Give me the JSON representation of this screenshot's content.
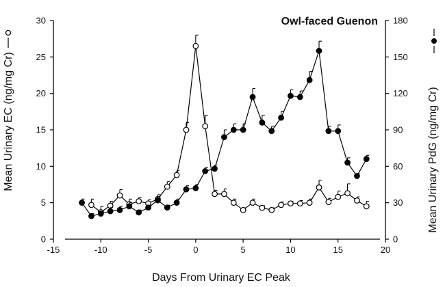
{
  "chart_data": {
    "type": "line",
    "title": "Owl-faced Guenon",
    "xlabel": "Days From Urinary EC Peak",
    "ylabel_left": "Mean Urinary EC (ng/mg Cr)",
    "ylabel_right": "Mean Urinary PdG (ng/mg Cr)",
    "xlim": [
      -15,
      20
    ],
    "ylim_left": [
      0,
      30
    ],
    "ylim_right": [
      0,
      180
    ],
    "x_ticks": [
      "-15",
      "-10",
      "-5",
      "0",
      "5",
      "10",
      "15",
      "20"
    ],
    "y_left_ticks": [
      "0",
      "5",
      "10",
      "15",
      "20",
      "25",
      "30"
    ],
    "y_right_ticks": [
      "0",
      "30",
      "60",
      "90",
      "120",
      "150",
      "180"
    ],
    "grid": false,
    "series": [
      {
        "name": "Mean Urinary EC (ng/mg Cr)",
        "axis": "left",
        "marker": "open-circle",
        "x": [
          -11,
          -10,
          -9,
          -8,
          -7,
          -6,
          -5,
          -4,
          -3,
          -2,
          -1,
          0,
          1,
          2,
          3,
          4,
          5,
          6,
          7,
          8,
          9,
          10,
          11,
          12,
          13,
          14,
          15,
          16,
          17,
          18
        ],
        "values": [
          4.7,
          3.7,
          4.6,
          6.0,
          4.8,
          5.2,
          4.9,
          5.5,
          7.2,
          8.8,
          15.0,
          26.5,
          15.5,
          6.2,
          6.2,
          5.0,
          4.0,
          5.0,
          4.3,
          4.0,
          4.7,
          4.9,
          4.9,
          5.0,
          7.1,
          5.1,
          5.8,
          6.3,
          5.3,
          4.5
        ],
        "errors": [
          0.8,
          0.8,
          0.6,
          0.8,
          0.7,
          0.5,
          0.5,
          0.6,
          0.7,
          0.6,
          1.0,
          1.5,
          1.5,
          0.5,
          0.7,
          0.5,
          0.3,
          0.5,
          0.3,
          0.3,
          0.4,
          0.3,
          0.4,
          0.5,
          1.0,
          0.5,
          0.8,
          1.3,
          0.5,
          0.7
        ]
      },
      {
        "name": "Mean Urinary PdG (ng/mg Cr)",
        "axis": "right",
        "marker": "filled-circle",
        "x": [
          -12,
          -11,
          -10,
          -9,
          -8,
          -7,
          -6,
          -5,
          -4,
          -3,
          -2,
          -1,
          0,
          1,
          2,
          3,
          4,
          5,
          6,
          7,
          8,
          9,
          10,
          11,
          12,
          13,
          14,
          15,
          16,
          17,
          18
        ],
        "values": [
          30,
          19,
          21,
          23,
          24,
          27,
          22,
          26,
          32,
          26,
          30,
          41,
          42,
          56,
          58,
          84,
          90,
          90,
          117,
          96,
          89,
          100,
          118,
          117,
          131,
          155,
          89,
          89,
          63,
          52,
          66
        ],
        "errors": [
          3,
          2,
          2,
          3,
          3,
          3,
          2,
          2,
          3,
          2,
          3,
          3,
          3,
          3,
          3,
          6,
          5,
          5,
          7,
          6,
          4,
          5,
          5,
          5,
          7,
          8,
          4,
          5,
          4,
          2,
          3
        ]
      }
    ]
  }
}
